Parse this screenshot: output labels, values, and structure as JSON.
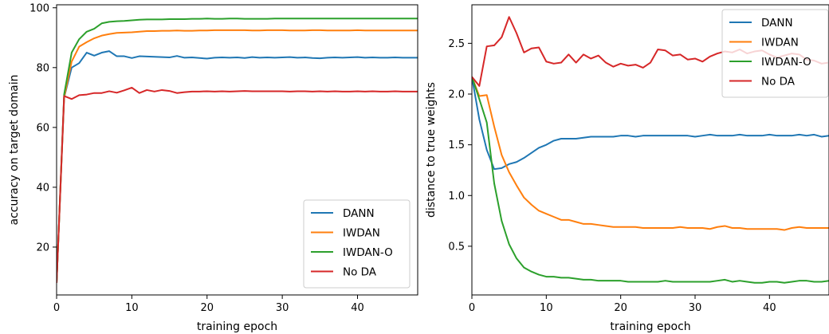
{
  "chart_data": [
    {
      "type": "line",
      "title": "",
      "xlabel": "training epoch",
      "ylabel": "accuracy on target domain",
      "xlim": [
        0,
        48
      ],
      "ylim": [
        4,
        101
      ],
      "xticks": [
        0,
        10,
        20,
        30,
        40
      ],
      "yticks": [
        20,
        40,
        60,
        80,
        100
      ],
      "grid": false,
      "legend_position": "lower-right",
      "series": [
        {
          "name": "DANN",
          "color": "#1f77b4",
          "x": [
            0,
            1,
            2,
            3,
            4,
            5,
            6,
            7,
            8,
            9,
            10,
            11,
            12,
            13,
            14,
            15,
            16,
            17,
            18,
            19,
            20,
            21,
            22,
            23,
            24,
            25,
            26,
            27,
            28,
            29,
            30,
            31,
            32,
            33,
            34,
            35,
            36,
            37,
            38,
            39,
            40,
            41,
            42,
            43,
            44,
            45,
            46,
            47,
            48
          ],
          "values": [
            8,
            70,
            80,
            81.5,
            85,
            84,
            85,
            85.5,
            83.8,
            83.8,
            83.2,
            83.8,
            83.7,
            83.6,
            83.5,
            83.4,
            83.9,
            83.3,
            83.4,
            83.2,
            83.0,
            83.3,
            83.4,
            83.3,
            83.4,
            83.2,
            83.5,
            83.3,
            83.4,
            83.3,
            83.4,
            83.5,
            83.3,
            83.4,
            83.2,
            83.1,
            83.3,
            83.4,
            83.3,
            83.4,
            83.5,
            83.3,
            83.4,
            83.3,
            83.3,
            83.4,
            83.3,
            83.3,
            83.3
          ]
        },
        {
          "name": "IWDAN",
          "color": "#ff7f0e",
          "x": [
            0,
            1,
            2,
            3,
            4,
            5,
            6,
            7,
            8,
            9,
            10,
            11,
            12,
            13,
            14,
            15,
            16,
            17,
            18,
            19,
            20,
            21,
            22,
            23,
            24,
            25,
            26,
            27,
            28,
            29,
            30,
            31,
            32,
            33,
            34,
            35,
            36,
            37,
            38,
            39,
            40,
            41,
            42,
            43,
            44,
            45,
            46,
            47,
            48
          ],
          "values": [
            8,
            70,
            82,
            87,
            88.5,
            89.8,
            90.7,
            91.2,
            91.6,
            91.7,
            91.8,
            92.0,
            92.2,
            92.2,
            92.3,
            92.3,
            92.4,
            92.3,
            92.3,
            92.4,
            92.4,
            92.5,
            92.5,
            92.5,
            92.5,
            92.5,
            92.4,
            92.4,
            92.5,
            92.5,
            92.5,
            92.4,
            92.4,
            92.4,
            92.5,
            92.5,
            92.4,
            92.4,
            92.4,
            92.4,
            92.5,
            92.4,
            92.4,
            92.4,
            92.4,
            92.4,
            92.4,
            92.4,
            92.4
          ]
        },
        {
          "name": "IWDAN-O",
          "color": "#2ca02c",
          "x": [
            0,
            1,
            2,
            3,
            4,
            5,
            6,
            7,
            8,
            9,
            10,
            11,
            12,
            13,
            14,
            15,
            16,
            17,
            18,
            19,
            20,
            21,
            22,
            23,
            24,
            25,
            26,
            27,
            28,
            29,
            30,
            31,
            32,
            33,
            34,
            35,
            36,
            37,
            38,
            39,
            40,
            41,
            42,
            43,
            44,
            45,
            46,
            47,
            48
          ],
          "values": [
            8,
            71,
            85,
            89.5,
            92,
            93,
            94.8,
            95.3,
            95.5,
            95.6,
            95.8,
            96.0,
            96.1,
            96.1,
            96.1,
            96.2,
            96.2,
            96.2,
            96.3,
            96.3,
            96.4,
            96.3,
            96.3,
            96.4,
            96.4,
            96.3,
            96.3,
            96.3,
            96.3,
            96.4,
            96.4,
            96.4,
            96.4,
            96.4,
            96.4,
            96.4,
            96.4,
            96.4,
            96.4,
            96.4,
            96.4,
            96.4,
            96.4,
            96.4,
            96.4,
            96.4,
            96.4,
            96.4,
            96.4
          ]
        },
        {
          "name": "No DA",
          "color": "#d62728",
          "x": [
            0,
            1,
            2,
            3,
            4,
            5,
            6,
            7,
            8,
            9,
            10,
            11,
            12,
            13,
            14,
            15,
            16,
            17,
            18,
            19,
            20,
            21,
            22,
            23,
            24,
            25,
            26,
            27,
            28,
            29,
            30,
            31,
            32,
            33,
            34,
            35,
            36,
            37,
            38,
            39,
            40,
            41,
            42,
            43,
            44,
            45,
            46,
            47,
            48
          ],
          "values": [
            8,
            70.5,
            69.5,
            70.8,
            71,
            71.5,
            71.5,
            72.1,
            71.6,
            72.4,
            73.3,
            71.5,
            72.5,
            72.0,
            72.5,
            72.2,
            71.5,
            71.8,
            72.0,
            72.0,
            72.1,
            72.0,
            72.1,
            72.0,
            72.1,
            72.2,
            72.1,
            72.1,
            72.1,
            72.1,
            72.1,
            72.0,
            72.1,
            72.1,
            72.0,
            72.1,
            72.0,
            72.1,
            72.0,
            72.0,
            72.1,
            72.0,
            72.1,
            72.0,
            72.0,
            72.1,
            72.0,
            72.0,
            72.0
          ]
        }
      ]
    },
    {
      "type": "line",
      "title": "",
      "xlabel": "training epoch",
      "ylabel": "distance to true weights",
      "xlim": [
        0,
        48
      ],
      "ylim": [
        0.02,
        2.88
      ],
      "xticks": [
        0,
        10,
        20,
        30,
        40
      ],
      "yticks": [
        0.5,
        1.0,
        1.5,
        2.0,
        2.5
      ],
      "ytick_labels": [
        "0.5",
        "1.0",
        "1.5",
        "2.0",
        "2.5"
      ],
      "grid": false,
      "legend_position": "upper-right",
      "series": [
        {
          "name": "DANN",
          "color": "#1f77b4",
          "x": [
            0,
            1,
            2,
            3,
            4,
            5,
            6,
            7,
            8,
            9,
            10,
            11,
            12,
            13,
            14,
            15,
            16,
            17,
            18,
            19,
            20,
            21,
            22,
            23,
            24,
            25,
            26,
            27,
            28,
            29,
            30,
            31,
            32,
            33,
            34,
            35,
            36,
            37,
            38,
            39,
            40,
            41,
            42,
            43,
            44,
            45,
            46,
            47,
            48
          ],
          "values": [
            2.17,
            1.75,
            1.45,
            1.26,
            1.27,
            1.31,
            1.33,
            1.37,
            1.42,
            1.47,
            1.5,
            1.54,
            1.56,
            1.56,
            1.56,
            1.57,
            1.58,
            1.58,
            1.58,
            1.58,
            1.59,
            1.59,
            1.58,
            1.59,
            1.59,
            1.59,
            1.59,
            1.59,
            1.59,
            1.59,
            1.58,
            1.59,
            1.6,
            1.59,
            1.59,
            1.59,
            1.6,
            1.59,
            1.59,
            1.59,
            1.6,
            1.59,
            1.59,
            1.59,
            1.6,
            1.59,
            1.6,
            1.58,
            1.59
          ]
        },
        {
          "name": "IWDAN",
          "color": "#ff7f0e",
          "x": [
            0,
            1,
            2,
            3,
            4,
            5,
            6,
            7,
            8,
            9,
            10,
            11,
            12,
            13,
            14,
            15,
            16,
            17,
            18,
            19,
            20,
            21,
            22,
            23,
            24,
            25,
            26,
            27,
            28,
            29,
            30,
            31,
            32,
            33,
            34,
            35,
            36,
            37,
            38,
            39,
            40,
            41,
            42,
            43,
            44,
            45,
            46,
            47,
            48
          ],
          "values": [
            2.17,
            1.98,
            1.99,
            1.68,
            1.4,
            1.23,
            1.1,
            0.98,
            0.91,
            0.85,
            0.82,
            0.79,
            0.76,
            0.76,
            0.74,
            0.72,
            0.72,
            0.71,
            0.7,
            0.69,
            0.69,
            0.69,
            0.69,
            0.68,
            0.68,
            0.68,
            0.68,
            0.68,
            0.69,
            0.68,
            0.68,
            0.68,
            0.67,
            0.69,
            0.7,
            0.68,
            0.68,
            0.67,
            0.67,
            0.67,
            0.67,
            0.67,
            0.66,
            0.68,
            0.69,
            0.68,
            0.68,
            0.68,
            0.68
          ]
        },
        {
          "name": "IWDAN-O",
          "color": "#2ca02c",
          "x": [
            0,
            1,
            2,
            3,
            4,
            5,
            6,
            7,
            8,
            9,
            10,
            11,
            12,
            13,
            14,
            15,
            16,
            17,
            18,
            19,
            20,
            21,
            22,
            23,
            24,
            25,
            26,
            27,
            28,
            29,
            30,
            31,
            32,
            33,
            34,
            35,
            36,
            37,
            38,
            39,
            40,
            41,
            42,
            43,
            44,
            45,
            46,
            47,
            48
          ],
          "values": [
            2.17,
            1.95,
            1.72,
            1.12,
            0.75,
            0.52,
            0.38,
            0.29,
            0.25,
            0.22,
            0.2,
            0.2,
            0.19,
            0.19,
            0.18,
            0.17,
            0.17,
            0.16,
            0.16,
            0.16,
            0.16,
            0.15,
            0.15,
            0.15,
            0.15,
            0.15,
            0.16,
            0.15,
            0.15,
            0.15,
            0.15,
            0.15,
            0.15,
            0.16,
            0.17,
            0.15,
            0.16,
            0.15,
            0.14,
            0.14,
            0.15,
            0.15,
            0.14,
            0.15,
            0.16,
            0.16,
            0.15,
            0.15,
            0.16
          ]
        },
        {
          "name": "No DA",
          "color": "#d62728",
          "x": [
            0,
            1,
            2,
            3,
            4,
            5,
            6,
            7,
            8,
            9,
            10,
            11,
            12,
            13,
            14,
            15,
            16,
            17,
            18,
            19,
            20,
            21,
            22,
            23,
            24,
            25,
            26,
            27,
            28,
            29,
            30,
            31,
            32,
            33,
            34,
            35,
            36,
            37,
            38,
            39,
            40,
            41,
            42,
            43,
            44,
            45,
            46,
            47,
            48
          ],
          "values": [
            2.17,
            2.08,
            2.47,
            2.48,
            2.56,
            2.76,
            2.6,
            2.41,
            2.45,
            2.46,
            2.32,
            2.3,
            2.31,
            2.39,
            2.31,
            2.39,
            2.35,
            2.38,
            2.31,
            2.27,
            2.3,
            2.28,
            2.29,
            2.26,
            2.31,
            2.44,
            2.43,
            2.38,
            2.39,
            2.34,
            2.35,
            2.32,
            2.37,
            2.4,
            2.42,
            2.41,
            2.44,
            2.4,
            2.42,
            2.43,
            2.39,
            2.36,
            2.38,
            2.4,
            2.39,
            2.34,
            2.33,
            2.3,
            2.31
          ]
        }
      ]
    }
  ]
}
